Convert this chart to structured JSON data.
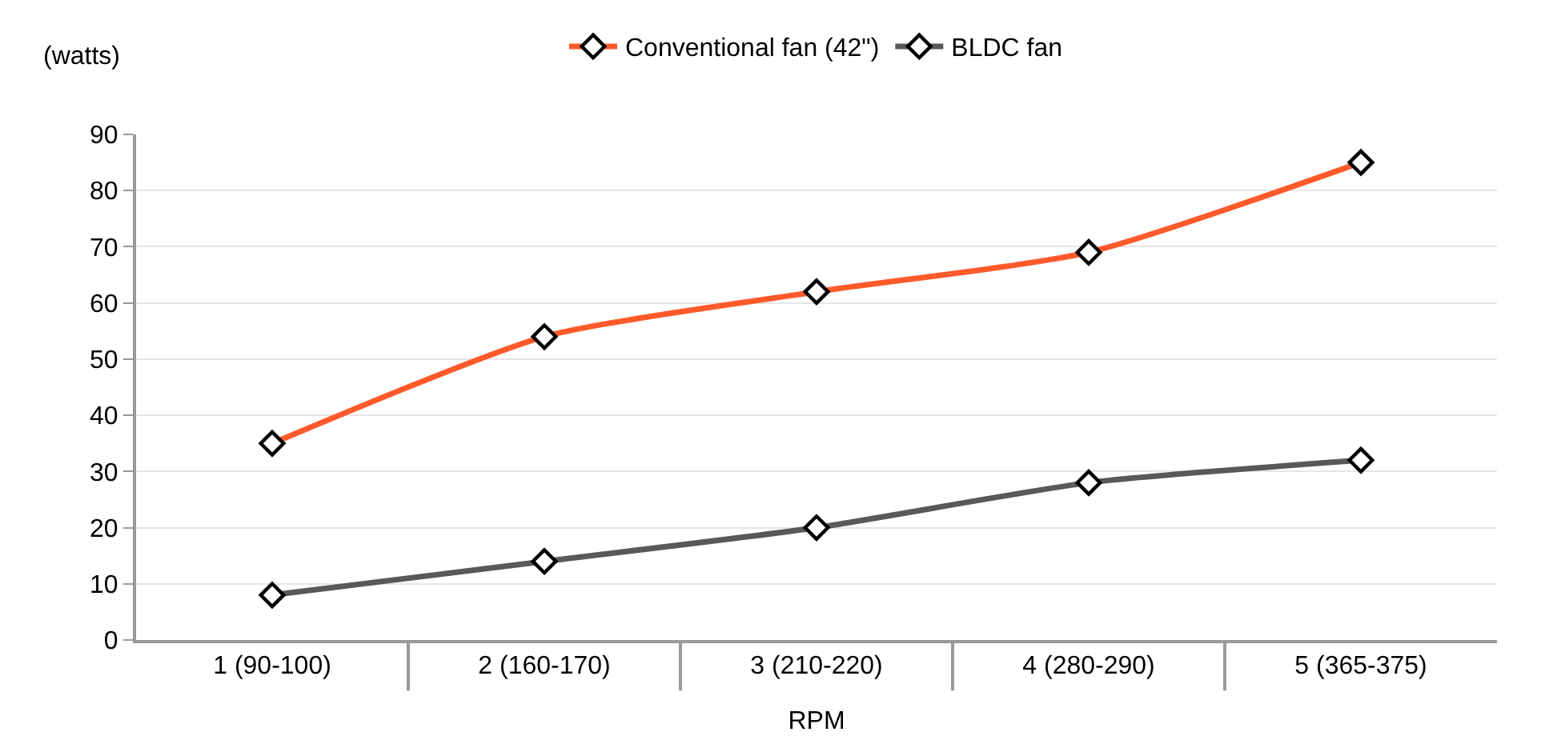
{
  "chart_data": {
    "type": "line",
    "ylabel": "(watts)",
    "xlabel": "RPM",
    "categories": [
      "1 (90-100)",
      "2 (160-170)",
      "3 (210-220)",
      "4 (280-290)",
      "5 (365-375)"
    ],
    "series": [
      {
        "name": "Conventional fan (42\")",
        "color": "#ff5a2b",
        "values": [
          35,
          54,
          62,
          69,
          85
        ]
      },
      {
        "name": "BLDC fan",
        "color": "#595959",
        "values": [
          8,
          14,
          20,
          28,
          32
        ]
      }
    ],
    "ylim": [
      0,
      90
    ],
    "yticks": [
      0,
      10,
      20,
      30,
      40,
      50,
      60,
      70,
      80,
      90
    ],
    "grid": "y",
    "legend": "top",
    "marker": "diamond",
    "line_style": "solid"
  }
}
